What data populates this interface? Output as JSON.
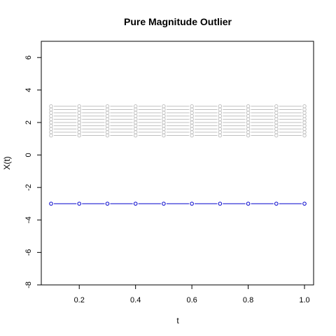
{
  "chart_data": {
    "type": "line",
    "title": "Pure Magnitude Outlier",
    "xlabel": "t",
    "ylabel": "X(t)",
    "xlim": [
      0.1,
      1.0
    ],
    "ylim": [
      -8,
      7
    ],
    "x_ticks": [
      "0.2",
      "0.4",
      "0.6",
      "0.8",
      "1.0"
    ],
    "y_ticks": [
      "-8",
      "-6",
      "-4",
      "-2",
      "0",
      "2",
      "4",
      "6"
    ],
    "x": [
      0.1,
      0.2,
      0.3,
      0.4,
      0.5,
      0.6,
      0.7,
      0.8,
      0.9,
      1.0
    ],
    "series": [
      {
        "values": [
          1.2,
          1.2,
          1.2,
          1.2,
          1.2,
          1.2,
          1.2,
          1.2,
          1.2,
          1.2
        ],
        "color": "#c0c0c0"
      },
      {
        "values": [
          1.4,
          1.4,
          1.4,
          1.4,
          1.4,
          1.4,
          1.4,
          1.4,
          1.4,
          1.4
        ],
        "color": "#c0c0c0"
      },
      {
        "values": [
          1.6,
          1.6,
          1.6,
          1.6,
          1.6,
          1.6,
          1.6,
          1.6,
          1.6,
          1.6
        ],
        "color": "#c0c0c0"
      },
      {
        "values": [
          1.8,
          1.8,
          1.8,
          1.8,
          1.8,
          1.8,
          1.8,
          1.8,
          1.8,
          1.8
        ],
        "color": "#c0c0c0"
      },
      {
        "values": [
          2.0,
          2.0,
          2.0,
          2.0,
          2.0,
          2.0,
          2.0,
          2.0,
          2.0,
          2.0
        ],
        "color": "#c0c0c0"
      },
      {
        "values": [
          2.2,
          2.2,
          2.2,
          2.2,
          2.2,
          2.2,
          2.2,
          2.2,
          2.2,
          2.2
        ],
        "color": "#c0c0c0"
      },
      {
        "values": [
          2.4,
          2.4,
          2.4,
          2.4,
          2.4,
          2.4,
          2.4,
          2.4,
          2.4,
          2.4
        ],
        "color": "#c0c0c0"
      },
      {
        "values": [
          2.6,
          2.6,
          2.6,
          2.6,
          2.6,
          2.6,
          2.6,
          2.6,
          2.6,
          2.6
        ],
        "color": "#c0c0c0"
      },
      {
        "values": [
          2.8,
          2.8,
          2.8,
          2.8,
          2.8,
          2.8,
          2.8,
          2.8,
          2.8,
          2.8
        ],
        "color": "#c0c0c0"
      },
      {
        "values": [
          3.0,
          3.0,
          3.0,
          3.0,
          3.0,
          3.0,
          3.0,
          3.0,
          3.0,
          3.0
        ],
        "color": "#c0c0c0"
      },
      {
        "values": [
          -3.0,
          -3.0,
          -3.0,
          -3.0,
          -3.0,
          -3.0,
          -3.0,
          -3.0,
          -3.0,
          -3.0
        ],
        "color": "#0000cc"
      }
    ]
  }
}
